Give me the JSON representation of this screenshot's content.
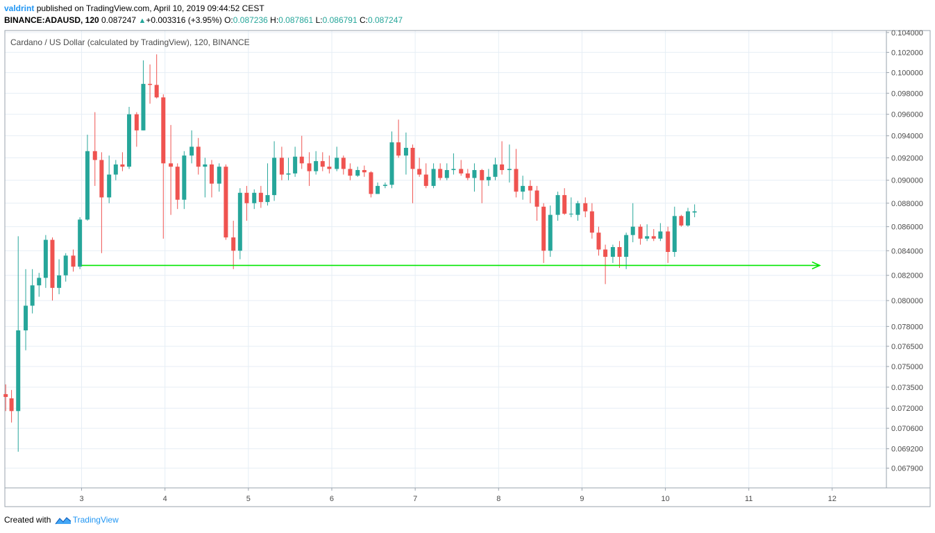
{
  "header": {
    "user": "valdrint",
    "published_text": "published on TradingView.com, April 10, 2019 09:44:52 CEST",
    "symbol": "BINANCE:ADAUSD, 120",
    "last": "0.087247",
    "change": "+0.003316 (+3.95%)",
    "o_label": "O:",
    "o_value": "0.087236",
    "h_label": "H:",
    "h_value": "0.087861",
    "l_label": "L:",
    "l_value": "0.086791",
    "c_label": "C:",
    "c_value": "0.087247"
  },
  "footer": {
    "created_with": "Created with",
    "brand": "TradingView"
  },
  "colors": {
    "up": "#26a69a",
    "down": "#ef5350",
    "support_line": "#00e600",
    "grid": "#e6eef5",
    "axis_text": "#4a4a4a"
  },
  "chart_data": {
    "type": "candlestick",
    "title": "Cardano / US Dollar (calculated by TradingView), 120, BINANCE",
    "x_ticks": [
      "3",
      "4",
      "5",
      "6",
      "7",
      "8",
      "9",
      "10",
      "11",
      "12"
    ],
    "x_tick_values": [
      3,
      4,
      5,
      6,
      7,
      8,
      9,
      10,
      11,
      12
    ],
    "y_ticks": [
      "0.104000",
      "0.102000",
      "0.100000",
      "0.098000",
      "0.096000",
      "0.094000",
      "0.092000",
      "0.090000",
      "0.088000",
      "0.086000",
      "0.084000",
      "0.082000",
      "0.080000",
      "0.078000",
      "0.076500",
      "0.075000",
      "0.073500",
      "0.072000",
      "0.070600",
      "0.069200",
      "0.067900"
    ],
    "y_scale": "log",
    "x_range": [
      2.08,
      12.65
    ],
    "y_range": [
      0.0666,
      0.1042
    ],
    "grid": true,
    "support_line": {
      "x1": 3.0,
      "x2": 11.85,
      "y": 0.0828,
      "arrow": "right"
    },
    "candles": [
      {
        "x": 2.09,
        "o": 0.073,
        "h": 0.0737,
        "l": 0.0718,
        "c": 0.0728
      },
      {
        "x": 2.16,
        "o": 0.0727,
        "h": 0.0733,
        "l": 0.071,
        "c": 0.0718
      },
      {
        "x": 2.24,
        "o": 0.0718,
        "h": 0.0852,
        "l": 0.069,
        "c": 0.0777
      },
      {
        "x": 2.33,
        "o": 0.0777,
        "h": 0.0825,
        "l": 0.0762,
        "c": 0.0796
      },
      {
        "x": 2.41,
        "o": 0.0796,
        "h": 0.0825,
        "l": 0.079,
        "c": 0.0812
      },
      {
        "x": 2.49,
        "o": 0.0812,
        "h": 0.0822,
        "l": 0.0803,
        "c": 0.0818
      },
      {
        "x": 2.57,
        "o": 0.0818,
        "h": 0.0853,
        "l": 0.081,
        "c": 0.0849
      },
      {
        "x": 2.65,
        "o": 0.0849,
        "h": 0.0851,
        "l": 0.08,
        "c": 0.081
      },
      {
        "x": 2.73,
        "o": 0.081,
        "h": 0.0833,
        "l": 0.0805,
        "c": 0.082
      },
      {
        "x": 2.81,
        "o": 0.082,
        "h": 0.0838,
        "l": 0.0815,
        "c": 0.0836
      },
      {
        "x": 2.9,
        "o": 0.0836,
        "h": 0.0841,
        "l": 0.0823,
        "c": 0.0827
      },
      {
        "x": 2.98,
        "o": 0.0827,
        "h": 0.0868,
        "l": 0.0825,
        "c": 0.0866
      },
      {
        "x": 3.07,
        "o": 0.0866,
        "h": 0.0941,
        "l": 0.0865,
        "c": 0.0926
      },
      {
        "x": 3.16,
        "o": 0.0926,
        "h": 0.0962,
        "l": 0.0895,
        "c": 0.0918
      },
      {
        "x": 3.24,
        "o": 0.0918,
        "h": 0.0925,
        "l": 0.0838,
        "c": 0.0885
      },
      {
        "x": 3.33,
        "o": 0.0885,
        "h": 0.0922,
        "l": 0.088,
        "c": 0.0905
      },
      {
        "x": 3.41,
        "o": 0.0905,
        "h": 0.0918,
        "l": 0.09,
        "c": 0.0914
      },
      {
        "x": 3.49,
        "o": 0.0914,
        "h": 0.0925,
        "l": 0.0908,
        "c": 0.0912
      },
      {
        "x": 3.57,
        "o": 0.0912,
        "h": 0.0967,
        "l": 0.091,
        "c": 0.096
      },
      {
        "x": 3.66,
        "o": 0.096,
        "h": 0.0962,
        "l": 0.093,
        "c": 0.0945
      },
      {
        "x": 3.74,
        "o": 0.0945,
        "h": 0.1012,
        "l": 0.0945,
        "c": 0.0989
      },
      {
        "x": 3.82,
        "o": 0.0989,
        "h": 0.1008,
        "l": 0.097,
        "c": 0.0988
      },
      {
        "x": 3.9,
        "o": 0.0988,
        "h": 0.1018,
        "l": 0.0975,
        "c": 0.0976
      },
      {
        "x": 3.98,
        "o": 0.0976,
        "h": 0.0979,
        "l": 0.085,
        "c": 0.0915
      },
      {
        "x": 4.07,
        "o": 0.0915,
        "h": 0.095,
        "l": 0.087,
        "c": 0.0912
      },
      {
        "x": 4.15,
        "o": 0.0912,
        "h": 0.0915,
        "l": 0.0875,
        "c": 0.0883
      },
      {
        "x": 4.23,
        "o": 0.0883,
        "h": 0.0926,
        "l": 0.0875,
        "c": 0.0922
      },
      {
        "x": 4.32,
        "o": 0.0922,
        "h": 0.0945,
        "l": 0.0915,
        "c": 0.093
      },
      {
        "x": 4.4,
        "o": 0.093,
        "h": 0.0938,
        "l": 0.0905,
        "c": 0.0912
      },
      {
        "x": 4.48,
        "o": 0.0912,
        "h": 0.092,
        "l": 0.0885,
        "c": 0.0914
      },
      {
        "x": 4.56,
        "o": 0.0914,
        "h": 0.0918,
        "l": 0.0885,
        "c": 0.0897
      },
      {
        "x": 4.65,
        "o": 0.0897,
        "h": 0.0915,
        "l": 0.089,
        "c": 0.0912
      },
      {
        "x": 4.73,
        "o": 0.0912,
        "h": 0.0914,
        "l": 0.0849,
        "c": 0.0851
      },
      {
        "x": 4.82,
        "o": 0.0851,
        "h": 0.0865,
        "l": 0.0825,
        "c": 0.084
      },
      {
        "x": 4.9,
        "o": 0.084,
        "h": 0.0893,
        "l": 0.0833,
        "c": 0.0889
      },
      {
        "x": 4.98,
        "o": 0.0889,
        "h": 0.0895,
        "l": 0.0865,
        "c": 0.088
      },
      {
        "x": 5.07,
        "o": 0.088,
        "h": 0.0892,
        "l": 0.0875,
        "c": 0.0889
      },
      {
        "x": 5.15,
        "o": 0.0889,
        "h": 0.0895,
        "l": 0.0876,
        "c": 0.0881
      },
      {
        "x": 5.23,
        "o": 0.0881,
        "h": 0.0915,
        "l": 0.0878,
        "c": 0.0887
      },
      {
        "x": 5.31,
        "o": 0.0887,
        "h": 0.0935,
        "l": 0.0882,
        "c": 0.092
      },
      {
        "x": 5.4,
        "o": 0.092,
        "h": 0.093,
        "l": 0.09,
        "c": 0.0905
      },
      {
        "x": 5.48,
        "o": 0.0905,
        "h": 0.092,
        "l": 0.09,
        "c": 0.0906
      },
      {
        "x": 5.56,
        "o": 0.0906,
        "h": 0.093,
        "l": 0.0903,
        "c": 0.0921
      },
      {
        "x": 5.64,
        "o": 0.0921,
        "h": 0.094,
        "l": 0.091,
        "c": 0.0915
      },
      {
        "x": 5.73,
        "o": 0.0915,
        "h": 0.0925,
        "l": 0.0895,
        "c": 0.0908
      },
      {
        "x": 5.81,
        "o": 0.0908,
        "h": 0.0926,
        "l": 0.0905,
        "c": 0.0917
      },
      {
        "x": 5.89,
        "o": 0.0917,
        "h": 0.0925,
        "l": 0.0908,
        "c": 0.0912
      },
      {
        "x": 5.97,
        "o": 0.0912,
        "h": 0.0922,
        "l": 0.0906,
        "c": 0.091
      },
      {
        "x": 6.06,
        "o": 0.091,
        "h": 0.093,
        "l": 0.0908,
        "c": 0.092
      },
      {
        "x": 6.14,
        "o": 0.092,
        "h": 0.0922,
        "l": 0.0905,
        "c": 0.091
      },
      {
        "x": 6.22,
        "o": 0.091,
        "h": 0.0915,
        "l": 0.09,
        "c": 0.0904
      },
      {
        "x": 6.31,
        "o": 0.0904,
        "h": 0.0912,
        "l": 0.0903,
        "c": 0.0909
      },
      {
        "x": 6.39,
        "o": 0.0909,
        "h": 0.0913,
        "l": 0.0903,
        "c": 0.0907
      },
      {
        "x": 6.47,
        "o": 0.0907,
        "h": 0.0908,
        "l": 0.0885,
        "c": 0.0888
      },
      {
        "x": 6.55,
        "o": 0.0888,
        "h": 0.0898,
        "l": 0.0888,
        "c": 0.0895
      },
      {
        "x": 6.64,
        "o": 0.0895,
        "h": 0.0898,
        "l": 0.0893,
        "c": 0.0896
      },
      {
        "x": 6.72,
        "o": 0.0896,
        "h": 0.0944,
        "l": 0.0893,
        "c": 0.0934
      },
      {
        "x": 6.8,
        "o": 0.0934,
        "h": 0.0955,
        "l": 0.092,
        "c": 0.0922
      },
      {
        "x": 6.89,
        "o": 0.0922,
        "h": 0.0943,
        "l": 0.0905,
        "c": 0.0929
      },
      {
        "x": 6.97,
        "o": 0.0929,
        "h": 0.0932,
        "l": 0.088,
        "c": 0.091
      },
      {
        "x": 7.05,
        "o": 0.091,
        "h": 0.092,
        "l": 0.0903,
        "c": 0.0905
      },
      {
        "x": 7.13,
        "o": 0.0905,
        "h": 0.0915,
        "l": 0.0893,
        "c": 0.0895
      },
      {
        "x": 7.22,
        "o": 0.0895,
        "h": 0.0915,
        "l": 0.0893,
        "c": 0.091
      },
      {
        "x": 7.3,
        "o": 0.091,
        "h": 0.0915,
        "l": 0.09,
        "c": 0.0902
      },
      {
        "x": 7.38,
        "o": 0.0902,
        "h": 0.0915,
        "l": 0.09,
        "c": 0.0909
      },
      {
        "x": 7.46,
        "o": 0.0909,
        "h": 0.0924,
        "l": 0.0905,
        "c": 0.091
      },
      {
        "x": 7.55,
        "o": 0.091,
        "h": 0.0918,
        "l": 0.0904,
        "c": 0.0906
      },
      {
        "x": 7.63,
        "o": 0.0906,
        "h": 0.091,
        "l": 0.09,
        "c": 0.0902
      },
      {
        "x": 7.71,
        "o": 0.0902,
        "h": 0.0915,
        "l": 0.089,
        "c": 0.0909
      },
      {
        "x": 7.8,
        "o": 0.0909,
        "h": 0.091,
        "l": 0.088,
        "c": 0.09
      },
      {
        "x": 7.88,
        "o": 0.09,
        "h": 0.091,
        "l": 0.0895,
        "c": 0.0903
      },
      {
        "x": 7.96,
        "o": 0.0903,
        "h": 0.092,
        "l": 0.09,
        "c": 0.0914
      },
      {
        "x": 8.04,
        "o": 0.0914,
        "h": 0.0935,
        "l": 0.0905,
        "c": 0.0909
      },
      {
        "x": 8.13,
        "o": 0.0909,
        "h": 0.0932,
        "l": 0.0898,
        "c": 0.091
      },
      {
        "x": 8.21,
        "o": 0.091,
        "h": 0.0928,
        "l": 0.0885,
        "c": 0.089
      },
      {
        "x": 8.29,
        "o": 0.089,
        "h": 0.0904,
        "l": 0.0883,
        "c": 0.0895
      },
      {
        "x": 8.38,
        "o": 0.0895,
        "h": 0.09,
        "l": 0.088,
        "c": 0.0891
      },
      {
        "x": 8.46,
        "o": 0.0891,
        "h": 0.0895,
        "l": 0.0865,
        "c": 0.0877
      },
      {
        "x": 8.54,
        "o": 0.0877,
        "h": 0.088,
        "l": 0.083,
        "c": 0.084
      },
      {
        "x": 8.62,
        "o": 0.084,
        "h": 0.0878,
        "l": 0.0835,
        "c": 0.087
      },
      {
        "x": 8.71,
        "o": 0.087,
        "h": 0.089,
        "l": 0.0865,
        "c": 0.0887
      },
      {
        "x": 8.79,
        "o": 0.0887,
        "h": 0.0893,
        "l": 0.087,
        "c": 0.0871
      },
      {
        "x": 8.87,
        "o": 0.0871,
        "h": 0.0885,
        "l": 0.0868,
        "c": 0.0871
      },
      {
        "x": 8.95,
        "o": 0.087,
        "h": 0.0882,
        "l": 0.0865,
        "c": 0.088
      },
      {
        "x": 9.04,
        "o": 0.088,
        "h": 0.0885,
        "l": 0.0868,
        "c": 0.0873
      },
      {
        "x": 9.12,
        "o": 0.0873,
        "h": 0.088,
        "l": 0.085,
        "c": 0.0855
      },
      {
        "x": 9.2,
        "o": 0.0855,
        "h": 0.086,
        "l": 0.0836,
        "c": 0.0841
      },
      {
        "x": 9.28,
        "o": 0.0841,
        "h": 0.0845,
        "l": 0.0813,
        "c": 0.0835
      },
      {
        "x": 9.37,
        "o": 0.0835,
        "h": 0.0845,
        "l": 0.083,
        "c": 0.0843
      },
      {
        "x": 9.45,
        "o": 0.0843,
        "h": 0.0848,
        "l": 0.0826,
        "c": 0.0835
      },
      {
        "x": 9.53,
        "o": 0.0835,
        "h": 0.0855,
        "l": 0.0825,
        "c": 0.0853
      },
      {
        "x": 9.61,
        "o": 0.0853,
        "h": 0.088,
        "l": 0.0847,
        "c": 0.086
      },
      {
        "x": 9.7,
        "o": 0.086,
        "h": 0.0862,
        "l": 0.0845,
        "c": 0.085
      },
      {
        "x": 9.78,
        "o": 0.085,
        "h": 0.0862,
        "l": 0.0848,
        "c": 0.0852
      },
      {
        "x": 9.86,
        "o": 0.0852,
        "h": 0.0858,
        "l": 0.0848,
        "c": 0.085
      },
      {
        "x": 9.94,
        "o": 0.085,
        "h": 0.0863,
        "l": 0.0848,
        "c": 0.0856
      },
      {
        "x": 10.03,
        "o": 0.0856,
        "h": 0.086,
        "l": 0.083,
        "c": 0.0839
      },
      {
        "x": 10.11,
        "o": 0.0839,
        "h": 0.0877,
        "l": 0.0835,
        "c": 0.0869
      },
      {
        "x": 10.19,
        "o": 0.0869,
        "h": 0.087,
        "l": 0.086,
        "c": 0.0861
      },
      {
        "x": 10.27,
        "o": 0.0861,
        "h": 0.0876,
        "l": 0.086,
        "c": 0.0873
      },
      {
        "x": 10.35,
        "o": 0.0872,
        "h": 0.0879,
        "l": 0.0868,
        "c": 0.0873
      }
    ]
  }
}
